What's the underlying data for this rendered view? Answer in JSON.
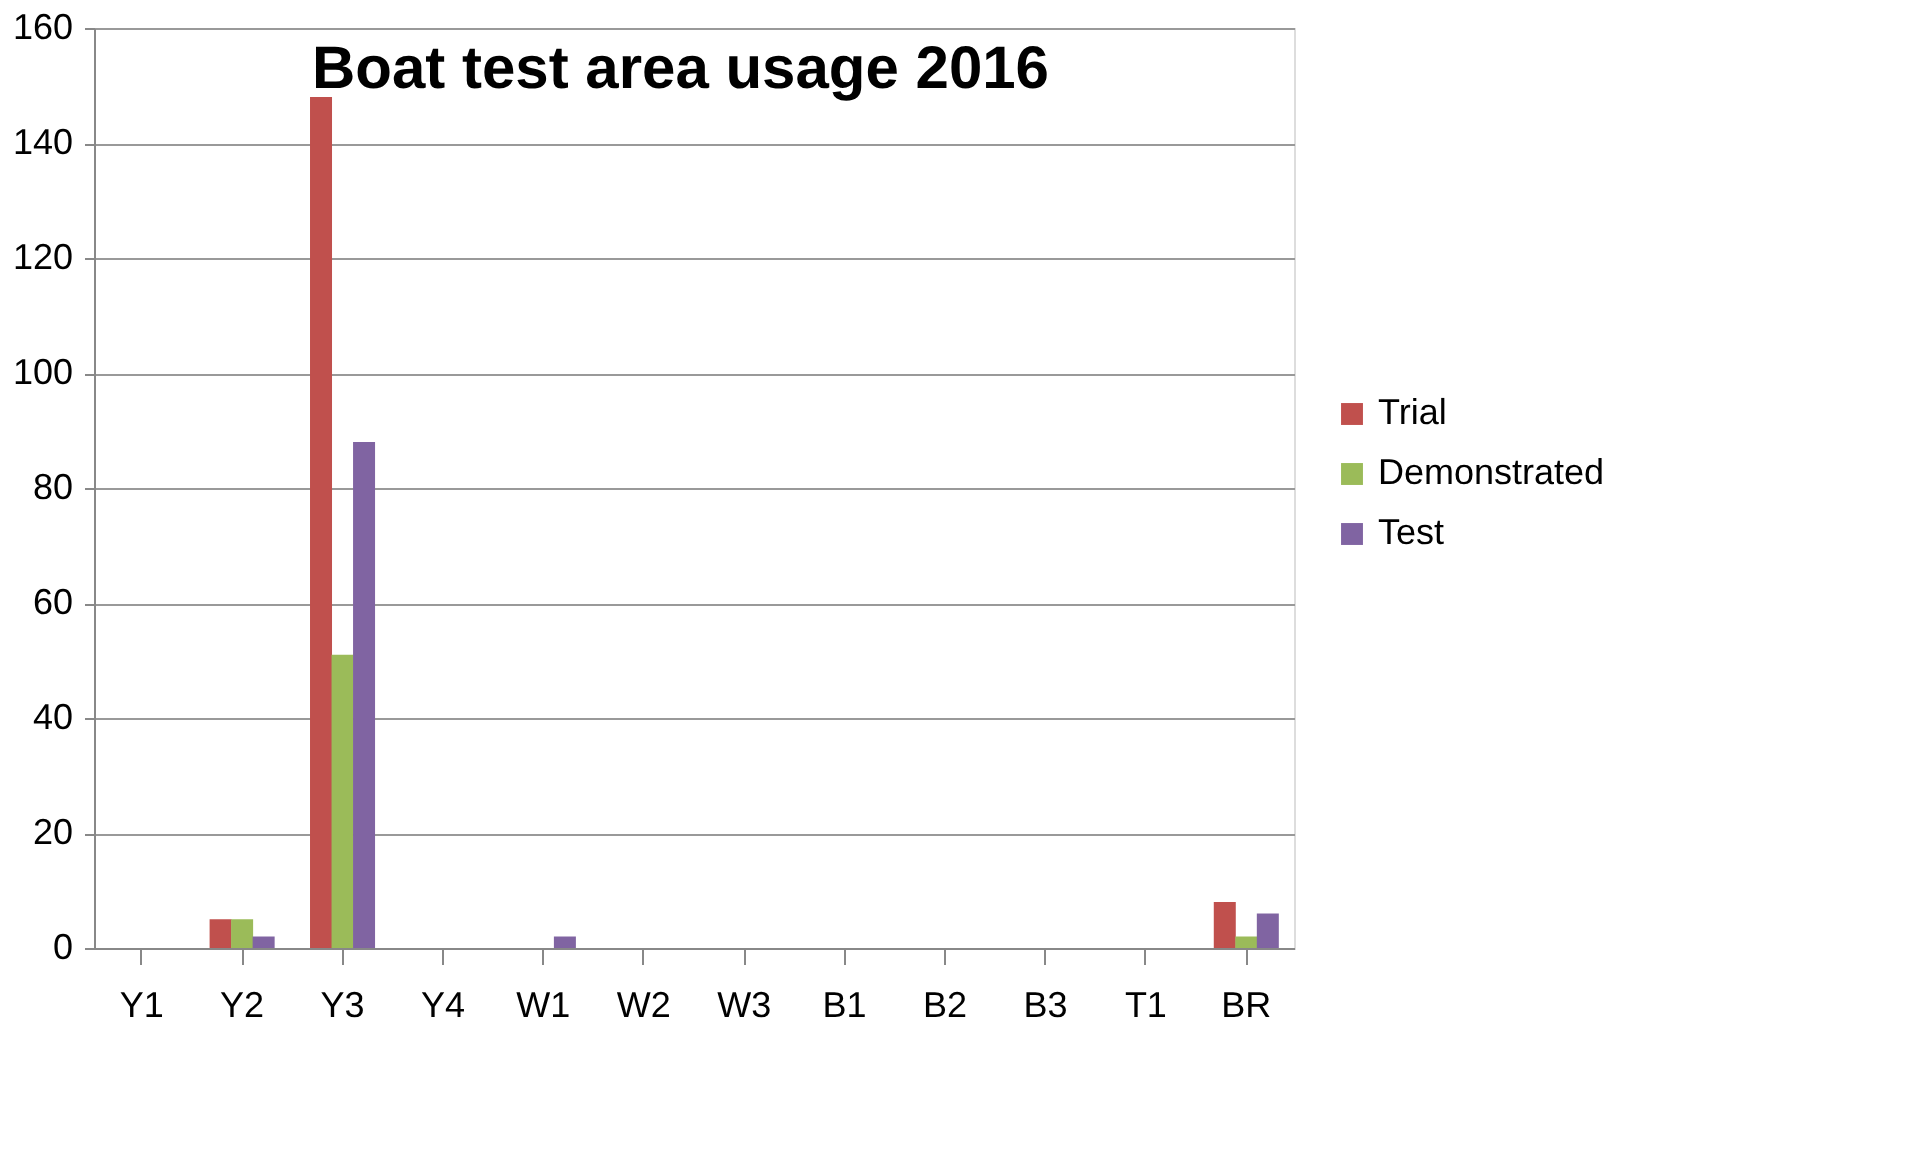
{
  "chart_data": {
    "type": "bar",
    "title": "Boat test area usage 2016",
    "categories": [
      "Y1",
      "Y2",
      "Y3",
      "Y4",
      "W1",
      "W2",
      "W3",
      "B1",
      "B2",
      "B3",
      "T1",
      "BR"
    ],
    "series": [
      {
        "name": "Trial",
        "color": "#c0504d",
        "values": [
          0,
          5,
          148,
          0,
          0,
          0,
          0,
          0,
          0,
          0,
          0,
          8
        ]
      },
      {
        "name": "Demonstrated",
        "color": "#9bbb59",
        "values": [
          0,
          5,
          51,
          0,
          0,
          0,
          0,
          0,
          0,
          0,
          0,
          2
        ]
      },
      {
        "name": "Test",
        "color": "#8064a2",
        "values": [
          0,
          2,
          88,
          0,
          2,
          0,
          0,
          0,
          0,
          0,
          0,
          6
        ]
      }
    ],
    "ylim": [
      0,
      160
    ],
    "yticks": [
      0,
      20,
      40,
      60,
      80,
      100,
      120,
      140,
      160
    ],
    "grid": "y",
    "legend": "right"
  }
}
